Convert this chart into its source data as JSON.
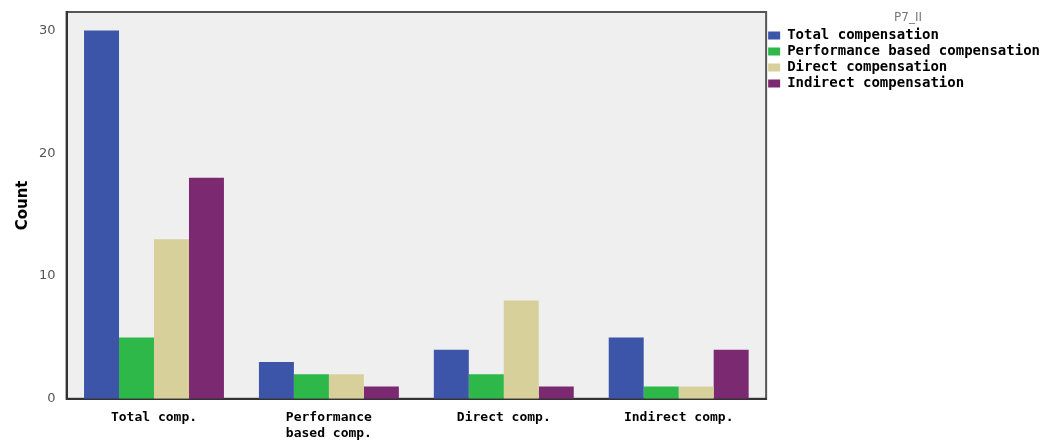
{
  "chart_data": {
    "type": "bar",
    "ylabel": "Count",
    "legend_title": "P7_II",
    "legend": "top right",
    "grid": false,
    "categories": [
      "Total comp.",
      "Performance based comp.",
      "Direct comp.",
      "Indirect comp."
    ],
    "ylim": [
      0,
      31.5
    ],
    "yticks": [
      0,
      10,
      20,
      30
    ],
    "series": [
      {
        "name": "Total compensation",
        "color": "#3d55a8",
        "values": [
          30,
          3,
          4,
          5
        ]
      },
      {
        "name": "Performance based compensation",
        "color": "#2eb84a",
        "values": [
          5,
          2,
          2,
          1
        ]
      },
      {
        "name": "Direct compensation",
        "color": "#d8d09a",
        "values": [
          13,
          2,
          8,
          1
        ]
      },
      {
        "name": "Indirect compensation",
        "color": "#7b2a72",
        "values": [
          18,
          1,
          1,
          4
        ]
      }
    ]
  }
}
